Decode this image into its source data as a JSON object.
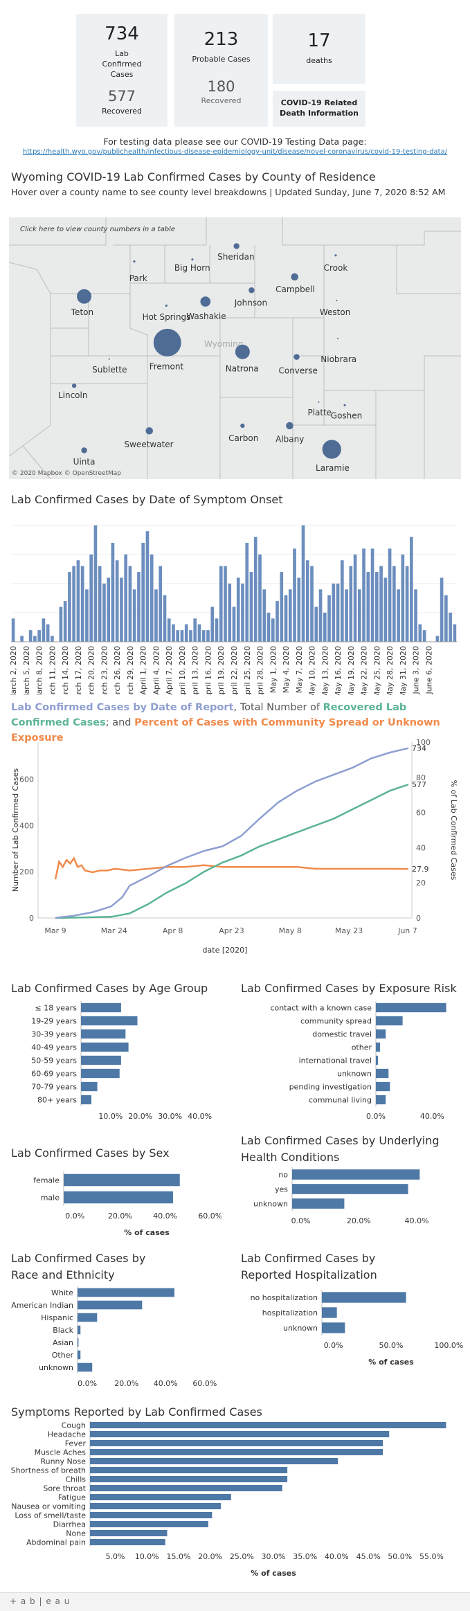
{
  "stats": {
    "lab_confirmed_value": "734",
    "lab_confirmed_label": "Lab Confirmed Cases",
    "lab_recovered_value": "577",
    "lab_recovered_label": "Recovered",
    "probable_value": "213",
    "probable_label": "Probable Cases",
    "probable_recovered_value": "180",
    "probable_recovered_label": "Recovered",
    "deaths_value": "17",
    "deaths_label": "deaths",
    "death_info_label": "COVID-19 Related Death Information"
  },
  "testing": {
    "text": "For testing data please see our COVID-19 Testing Data page:",
    "url": "https://health.wyo.gov/publichealth/infectious-disease-epidemiology-unit/disease/novel-coronavirus/covid-19-testing-data/"
  },
  "map": {
    "title": "Wyoming COVID-19 Lab Confirmed Cases by County of Residence",
    "subtitle": "Hover over a county name to see county level breakdowns | Updated Sunday, June 7, 2020 8:52 AM",
    "hint": "Click here to view county numbers in a table",
    "state_label": "Wyoming",
    "attribution": "© 2020 Mapbox © OpenStreetMap",
    "colors": {
      "bubble": "#4e6c94",
      "land": "#e9eaea",
      "border": "#bfbfbf"
    },
    "counties": [
      {
        "name": "Park",
        "size": 1.5
      },
      {
        "name": "Big Horn",
        "size": 1.5
      },
      {
        "name": "Sheridan",
        "size": 4
      },
      {
        "name": "Crook",
        "size": 1.5
      },
      {
        "name": "Teton",
        "size": 10
      },
      {
        "name": "Hot Springs",
        "size": 1.5
      },
      {
        "name": "Washakie",
        "size": 7
      },
      {
        "name": "Johnson",
        "size": 4
      },
      {
        "name": "Campbell",
        "size": 5
      },
      {
        "name": "Weston",
        "size": 1
      },
      {
        "name": "Sublette",
        "size": 1
      },
      {
        "name": "Fremont",
        "size": 19
      },
      {
        "name": "Natrona",
        "size": 10
      },
      {
        "name": "Converse",
        "size": 4
      },
      {
        "name": "Niobrara",
        "size": 1
      },
      {
        "name": "Lincoln",
        "size": 3
      },
      {
        "name": "Platte",
        "size": 1
      },
      {
        "name": "Goshen",
        "size": 1.5
      },
      {
        "name": "Sweetwater",
        "size": 5
      },
      {
        "name": "Carbon",
        "size": 3
      },
      {
        "name": "Albany",
        "size": 5
      },
      {
        "name": "Laramie",
        "size": 13
      },
      {
        "name": "Uinta",
        "size": 4
      }
    ]
  },
  "chart_data": [
    {
      "id": "onset",
      "type": "bar",
      "title": "Lab Confirmed Cases by Date of Symptom Onset",
      "color": "#6c8ebf",
      "values": [
        4,
        0,
        1,
        0,
        2,
        1,
        2,
        4,
        3,
        1,
        0,
        6,
        7,
        12,
        13,
        14,
        13,
        9,
        15,
        20,
        13,
        10,
        11,
        17,
        14,
        11,
        15,
        13,
        9,
        12,
        17,
        19,
        15,
        9,
        13,
        8,
        4,
        3,
        2,
        2,
        3,
        2,
        4,
        3,
        2,
        2,
        6,
        4,
        13,
        13,
        10,
        6,
        11,
        10,
        17,
        12,
        18,
        15,
        9,
        5,
        4,
        7,
        12,
        8,
        9,
        16,
        11,
        20,
        14,
        13,
        6,
        9,
        5,
        8,
        10,
        10,
        14,
        9,
        13,
        15,
        9,
        16,
        12,
        16,
        12,
        13,
        11,
        16,
        13,
        9,
        15,
        13,
        18,
        9,
        3,
        2,
        0,
        0,
        1,
        11,
        8,
        5,
        3
      ],
      "tick_labels": [
        "March 2, 2020",
        "March 5, 2020",
        "March 8, 2020",
        "March 11, 2020",
        "March 14, 2020",
        "March 17, 2020",
        "March 20, 2020",
        "March 23, 2020",
        "March 26, 2020",
        "March 29, 2020",
        "April 1, 2020",
        "April 4, 2020",
        "April 7, 2020",
        "April 10, 2020",
        "April 13, 2020",
        "April 16, 2020",
        "April 19, 2020",
        "April 22, 2020",
        "April 25, 2020",
        "April 28, 2020",
        "May 1, 2020",
        "May 4, 2020",
        "May 7, 2020",
        "May 10, 2020",
        "May 13, 2020",
        "May 16, 2020",
        "May 19, 2020",
        "May 22, 2020",
        "May 25, 2020",
        "May 28, 2020",
        "May 31, 2020",
        "June 3, 2020",
        "June 6, 2020"
      ],
      "ylim": [
        0,
        22
      ]
    },
    {
      "id": "report",
      "type": "line",
      "title_parts": [
        {
          "text": "Lab Confirmed Cases by Date of Report",
          "color": "#8e9fd1"
        },
        {
          "text": ", Total Number of ",
          "color": "#555555"
        },
        {
          "text": "Recovered Lab Confirmed Cases",
          "color": "#5bb494"
        },
        {
          "text": "; and ",
          "color": "#555555"
        },
        {
          "text": "Percent of Cases with Community Spread or Unknown Exposure",
          "color": "#f08a4b"
        }
      ],
      "ylabel": "Number of Lab Confirmed Cases",
      "y2label": "% of Lab Confirmed Cases",
      "xlabel": "date [2020]",
      "x_ticks": [
        "Mar 9",
        "Mar 24",
        "Apr 8",
        "Apr 23",
        "May 8",
        "May 23",
        "Jun 7"
      ],
      "y_ticks": [
        0,
        200,
        400,
        600
      ],
      "y2_ticks": [
        0,
        20,
        40,
        60,
        80,
        100
      ],
      "ylim": [
        0,
        760
      ],
      "y2lim": [
        0,
        100
      ],
      "series": [
        {
          "name": "Lab Confirmed Cases",
          "color": "#8e9fd1",
          "end_label": "734",
          "points": [
            [
              0,
              1
            ],
            [
              5,
              10
            ],
            [
              10,
              25
            ],
            [
              15,
              50
            ],
            [
              18,
              90
            ],
            [
              20,
              140
            ],
            [
              25,
              180
            ],
            [
              30,
              225
            ],
            [
              35,
              260
            ],
            [
              40,
              290
            ],
            [
              45,
              310
            ],
            [
              50,
              355
            ],
            [
              55,
              430
            ],
            [
              60,
              500
            ],
            [
              65,
              550
            ],
            [
              70,
              590
            ],
            [
              75,
              620
            ],
            [
              80,
              650
            ],
            [
              85,
              690
            ],
            [
              90,
              715
            ],
            [
              95,
              734
            ]
          ]
        },
        {
          "name": "Recovered Lab Confirmed Cases",
          "color": "#5bb494",
          "end_label": "577",
          "points": [
            [
              0,
              0
            ],
            [
              15,
              5
            ],
            [
              20,
              20
            ],
            [
              25,
              60
            ],
            [
              30,
              110
            ],
            [
              35,
              150
            ],
            [
              40,
              200
            ],
            [
              45,
              240
            ],
            [
              50,
              270
            ],
            [
              55,
              310
            ],
            [
              60,
              340
            ],
            [
              65,
              370
            ],
            [
              70,
              400
            ],
            [
              75,
              430
            ],
            [
              80,
              470
            ],
            [
              85,
              510
            ],
            [
              90,
              550
            ],
            [
              95,
              577
            ]
          ]
        }
      ],
      "pct_series": {
        "name": "Percent of Cases with Community Spread or Unknown Exposure",
        "color": "#f08a4b",
        "end_label": "27.9",
        "points": [
          [
            0,
            22
          ],
          [
            1,
            32
          ],
          [
            2,
            29
          ],
          [
            3,
            33
          ],
          [
            4,
            31
          ],
          [
            5,
            34
          ],
          [
            6,
            29
          ],
          [
            7,
            30
          ],
          [
            8,
            27
          ],
          [
            10,
            26
          ],
          [
            12,
            27
          ],
          [
            14,
            27
          ],
          [
            16,
            28
          ],
          [
            20,
            27
          ],
          [
            25,
            28
          ],
          [
            30,
            29
          ],
          [
            35,
            29
          ],
          [
            40,
            30
          ],
          [
            45,
            29
          ],
          [
            50,
            29
          ],
          [
            55,
            29
          ],
          [
            60,
            29
          ],
          [
            65,
            29
          ],
          [
            70,
            28
          ],
          [
            75,
            28
          ],
          [
            80,
            28
          ],
          [
            85,
            28
          ],
          [
            90,
            28
          ],
          [
            95,
            27.9
          ]
        ]
      }
    },
    {
      "id": "age",
      "type": "bar",
      "orientation": "horizontal",
      "title": "Lab Confirmed Cases by Age Group",
      "color": "#4e79a7",
      "categories": [
        "≤ 18 years",
        "19-29 years",
        "30-39 years",
        "40-49 years",
        "50-59 years",
        "60-69 years",
        "70-79 years",
        "80+ years"
      ],
      "values": [
        13.5,
        19,
        15,
        16,
        13.5,
        13,
        5.5,
        3.5
      ],
      "x_ticks": [
        "10.0%",
        "20.0%",
        "30.0%",
        "40.0%"
      ],
      "xlim": [
        0,
        45
      ],
      "xlabel": ""
    },
    {
      "id": "exposure",
      "type": "bar",
      "orientation": "horizontal",
      "title": "Lab Confirmed Cases by Exposure Risk",
      "color": "#4e79a7",
      "categories": [
        "contact with a known case",
        "community spread",
        "domestic travel",
        "other",
        "international travel",
        "unknown",
        "pending investigation",
        "communal living"
      ],
      "values": [
        50,
        19,
        7,
        3,
        1.5,
        9,
        10,
        7
      ],
      "x_ticks": [
        "0.0%",
        "40.0%"
      ],
      "xlim": [
        0,
        60
      ],
      "xlabel": ""
    },
    {
      "id": "sex",
      "type": "bar",
      "orientation": "horizontal",
      "title": "Lab Confirmed Cases by Sex",
      "color": "#4e79a7",
      "categories": [
        "female",
        "male"
      ],
      "values": [
        51.5,
        48.5
      ],
      "x_ticks": [
        "0.0%",
        "20.0%",
        "40.0%",
        "60.0%"
      ],
      "xlim": [
        -5,
        65
      ],
      "xlabel": "% of cases"
    },
    {
      "id": "underlying",
      "type": "bar",
      "orientation": "horizontal",
      "title": "Lab Confirmed Cases by Underlying Health Conditions",
      "color": "#4e79a7",
      "categories": [
        "no",
        "yes",
        "unknown"
      ],
      "values": [
        44,
        40,
        18
      ],
      "x_ticks": [
        "0.0%",
        "20.0%",
        "40.0%"
      ],
      "xlim": [
        -3,
        55
      ],
      "xlabel": ""
    },
    {
      "id": "race",
      "type": "bar",
      "orientation": "horizontal",
      "title": "Lab Confirmed Cases by Race and Ethnicity",
      "color": "#4e79a7",
      "categories": [
        "White",
        "American Indian",
        "Hispanic",
        "Black",
        "Asian",
        "Other",
        "unknown"
      ],
      "values": [
        49.5,
        33,
        10,
        1.5,
        0.5,
        1.5,
        7.5
      ],
      "x_ticks": [
        "0.0%",
        "20.0%",
        "40.0%",
        "60.0%"
      ],
      "xlim": [
        -5,
        65
      ],
      "xlabel": ""
    },
    {
      "id": "hospital",
      "type": "bar",
      "orientation": "horizontal",
      "title": "Lab Confirmed Cases by Reported Hospitalization",
      "color": "#4e79a7",
      "categories": [
        "no hospitalization",
        "hospitalization",
        "unknown"
      ],
      "values": [
        73,
        13,
        20
      ],
      "x_ticks": [
        "0.0%",
        "50.0%",
        "100.0%"
      ],
      "xlim": [
        -10,
        110
      ],
      "xlabel": "% of cases"
    },
    {
      "id": "symptoms",
      "type": "bar",
      "orientation": "horizontal",
      "title": "Symptoms Reported by Lab Confirmed Cases",
      "color": "#4e79a7",
      "categories": [
        "Cough",
        "Headache",
        "Fever",
        "Muscle Aches",
        "Runny Nose",
        "Shortness of breath",
        "Chills",
        "Sore throat",
        "Fatigue",
        "Nausea or vomiting",
        "Loss of smell/taste",
        "Diarrhea",
        "None",
        "Abdominal pain"
      ],
      "values": [
        57.3,
        48.3,
        47.3,
        47.3,
        40.2,
        32.2,
        32.2,
        31.4,
        23.3,
        21.7,
        20.3,
        19.7,
        13.2,
        12.9
      ],
      "x_ticks": [
        "5.0%",
        "10.0%",
        "15.0%",
        "20.0%",
        "25.0%",
        "30.0%",
        "35.0%",
        "40.0%",
        "45.0%",
        "50.0%",
        "55.0%"
      ],
      "xlim": [
        1,
        59
      ],
      "xlabel": "% of cases"
    }
  ],
  "footer": {
    "brand": "+ a b | e a u"
  }
}
